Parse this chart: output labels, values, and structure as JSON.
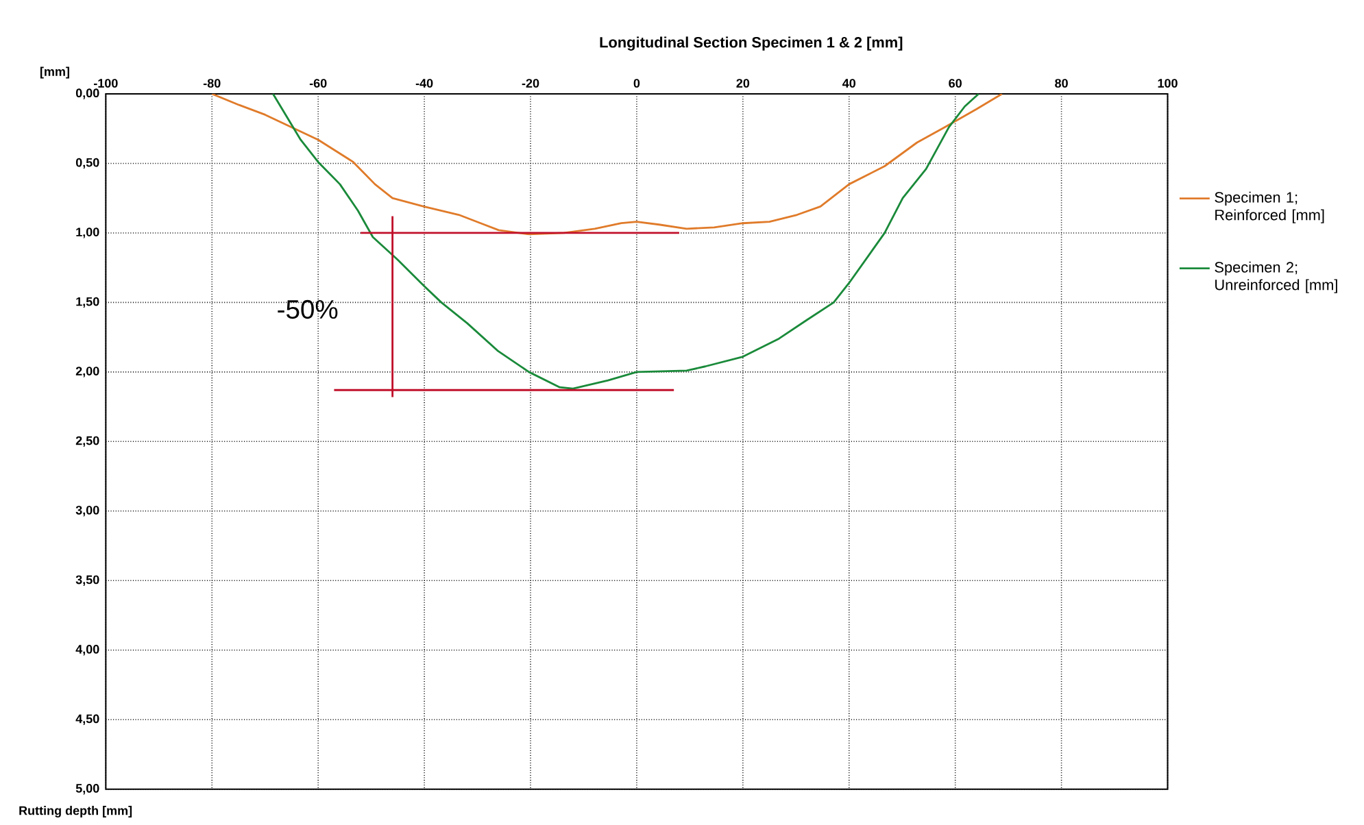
{
  "chart_data": {
    "type": "line",
    "title": "Longitudinal Section Specimen 1 & 2 [mm]",
    "xlabel": "[mm]",
    "ylabel": "Rutting depth [mm]",
    "xlim": [
      -100,
      100
    ],
    "xticks": [
      -100,
      -80,
      -60,
      -40,
      -20,
      0,
      20,
      40,
      60,
      80,
      100
    ],
    "ylim": [
      5,
      0
    ],
    "yticks": [
      {
        "value": 0,
        "label": "0,00"
      },
      {
        "value": 0.5,
        "label": "0,50"
      },
      {
        "value": 1,
        "label": "1,00"
      },
      {
        "value": 1.5,
        "label": "1,50"
      },
      {
        "value": 2,
        "label": "2,00"
      },
      {
        "value": 2.5,
        "label": "2,50"
      },
      {
        "value": 3,
        "label": "3,00"
      },
      {
        "value": 3.5,
        "label": "3,50"
      },
      {
        "value": 4,
        "label": "4,00"
      },
      {
        "value": 4.5,
        "label": "4,50"
      },
      {
        "value": 5,
        "label": "5,00"
      }
    ],
    "grid": true,
    "legend": "right",
    "series": [
      {
        "name": "Specimen 1; Reinforced [mm]",
        "color": "#e07b2a",
        "x": [
          -80,
          -74.9,
          -70,
          -65,
          -60,
          -53.4,
          -49.3,
          -46,
          -40.1,
          -33.5,
          -29.4,
          -26,
          -20.3,
          -13.7,
          -7.9,
          -2.9,
          0,
          4.2,
          9.4,
          14.6,
          20,
          25,
          30.2,
          34.6,
          40,
          46.7,
          52.8,
          58,
          64,
          68.8
        ],
        "values": [
          0,
          0.08,
          0.15,
          0.24,
          0.33,
          0.49,
          0.65,
          0.75,
          0.81,
          0.87,
          0.93,
          0.98,
          1.01,
          1.0,
          0.97,
          0.93,
          0.92,
          0.94,
          0.97,
          0.96,
          0.93,
          0.92,
          0.87,
          0.81,
          0.65,
          0.52,
          0.35,
          0.24,
          0.11,
          0
        ]
      },
      {
        "name": "Specimen 2; Unreinforced [mm]",
        "color": "#1a8a3a",
        "x": [
          -68.5,
          -63.3,
          -60,
          -55.9,
          -52.5,
          -49.7,
          -45.1,
          -40.1,
          -36.8,
          -31.9,
          -26.1,
          -20.3,
          -14.5,
          -12,
          -5.4,
          0,
          9.4,
          12.9,
          20,
          26.8,
          31.9,
          37.1,
          40,
          46.7,
          50.1,
          54.5,
          58.8,
          61.8,
          64.4
        ],
        "values": [
          0,
          0.33,
          0.49,
          0.65,
          0.84,
          1.03,
          1.19,
          1.38,
          1.5,
          1.65,
          1.85,
          2.0,
          2.11,
          2.12,
          2.06,
          2.0,
          1.99,
          1.96,
          1.89,
          1.76,
          1.63,
          1.5,
          1.36,
          1.0,
          0.75,
          0.54,
          0.24,
          0.09,
          0
        ]
      },
      {
        "color": "#c0102a",
        "x": [
          -52,
          8
        ],
        "values": [
          1,
          1
        ]
      },
      {
        "color": "#c0102a",
        "x": [
          -57,
          7
        ],
        "values": [
          2.13,
          2.13
        ]
      },
      {
        "color": "#c0102a",
        "x": [
          -46,
          -46
        ],
        "values": [
          0.88,
          2.18
        ]
      }
    ],
    "annotations": [
      "-50%"
    ]
  }
}
